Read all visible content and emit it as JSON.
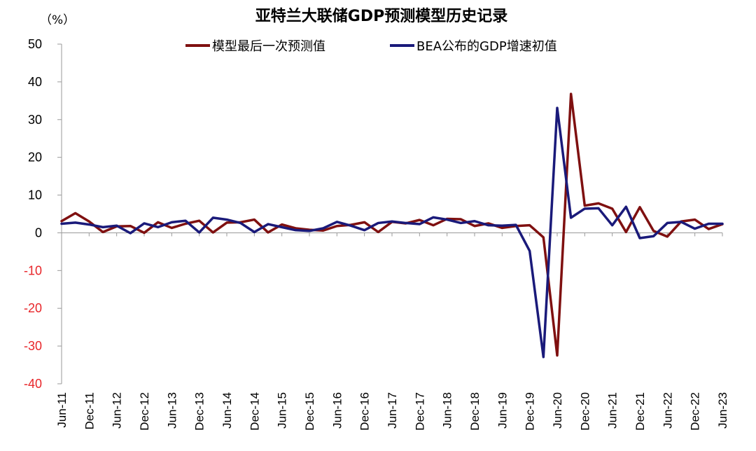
{
  "chart_data": {
    "type": "line",
    "title": "亚特兰大联储GDP预测模型历史记录",
    "unit_label": "（%）",
    "ylim": [
      -40,
      50
    ],
    "yticks": [
      50,
      40,
      30,
      20,
      10,
      0,
      -10,
      -20,
      -30,
      -40
    ],
    "negative_tick_color": "#e8262a",
    "grid": false,
    "legend_position": "top",
    "x_tick_labels": [
      "Jun-11",
      "Dec-11",
      "Jun-12",
      "Dec-12",
      "Jun-13",
      "Dec-13",
      "Jun-14",
      "Dec-14",
      "Jun-15",
      "Dec-15",
      "Jun-16",
      "Dec-16",
      "Jun-17",
      "Dec-17",
      "Jun-18",
      "Dec-18",
      "Jun-19",
      "Dec-19",
      "Jun-20",
      "Dec-20",
      "Jun-21",
      "Dec-21",
      "Jun-22",
      "Dec-22",
      "Jun-23"
    ],
    "x": [
      "2011Q2",
      "2011Q3",
      "2011Q4",
      "2012Q1",
      "2012Q2",
      "2012Q3",
      "2012Q4",
      "2013Q1",
      "2013Q2",
      "2013Q3",
      "2013Q4",
      "2014Q1",
      "2014Q2",
      "2014Q3",
      "2014Q4",
      "2015Q1",
      "2015Q2",
      "2015Q3",
      "2015Q4",
      "2016Q1",
      "2016Q2",
      "2016Q3",
      "2016Q4",
      "2017Q1",
      "2017Q2",
      "2017Q3",
      "2017Q4",
      "2018Q1",
      "2018Q2",
      "2018Q3",
      "2018Q4",
      "2019Q1",
      "2019Q2",
      "2019Q3",
      "2019Q4",
      "2020Q1",
      "2020Q2",
      "2020Q3",
      "2020Q4",
      "2021Q1",
      "2021Q2",
      "2021Q3",
      "2021Q4",
      "2022Q1",
      "2022Q2",
      "2022Q3",
      "2022Q4",
      "2023Q1",
      "2023Q2"
    ],
    "series": [
      {
        "name": "模型最后一次预测值",
        "color": "#7f1010",
        "values": [
          3.1,
          5.2,
          3.0,
          0.2,
          1.7,
          1.8,
          0.0,
          2.8,
          1.3,
          2.4,
          3.2,
          0.1,
          2.7,
          2.8,
          3.5,
          0.1,
          2.2,
          1.2,
          0.8,
          0.6,
          1.8,
          2.1,
          2.8,
          0.2,
          2.9,
          2.5,
          3.4,
          2.0,
          3.7,
          3.6,
          1.8,
          2.5,
          1.3,
          1.8,
          2.0,
          -1.2,
          -32.5,
          36.8,
          7.2,
          7.8,
          6.4,
          0.2,
          6.8,
          0.5,
          -1.0,
          3.0,
          3.5,
          1.0,
          2.3
        ]
      },
      {
        "name": "BEA公布的GDP增速初值",
        "color": "#1a1a7a",
        "values": [
          2.4,
          2.7,
          2.2,
          1.5,
          1.9,
          -0.1,
          2.5,
          1.5,
          2.8,
          3.2,
          0.1,
          4.0,
          3.5,
          2.6,
          0.2,
          2.3,
          1.5,
          0.7,
          0.5,
          1.2,
          2.9,
          1.9,
          0.7,
          2.6,
          3.0,
          2.6,
          2.3,
          4.1,
          3.5,
          2.6,
          3.1,
          2.0,
          1.9,
          2.1,
          -4.8,
          -32.9,
          33.1,
          4.0,
          6.4,
          6.5,
          2.0,
          6.9,
          -1.4,
          -0.9,
          2.6,
          2.9,
          1.1,
          2.4,
          2.4
        ]
      }
    ]
  }
}
